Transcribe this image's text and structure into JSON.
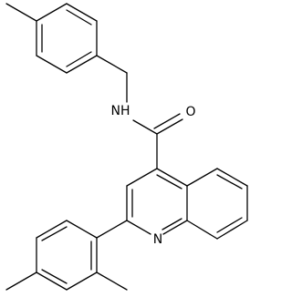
{
  "atoms": [
    {
      "label": "NH"
    },
    {
      "label": "O"
    },
    {
      "label": "N"
    }
  ]
}
